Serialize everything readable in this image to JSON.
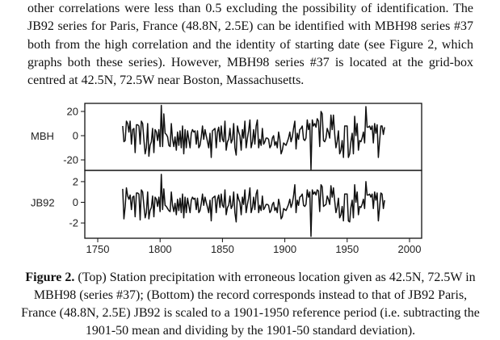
{
  "paragraph": "other correlations were less than 0.5 excluding the possibility of identification. The JB92 series for Paris, France (48.8N, 2.5E) can be identified with MBH98 series #37 both from the high correlation and the identity of starting date (see Figure 2, which graphs both these series). However, MBH98 series #37 is located at the grid-box centred at 42.5N, 72.5W near Boston, Massachusetts.",
  "caption": {
    "label": "Figure 2.",
    "text": " (Top) Station precipitation with erroneous location given as 42.5N, 72.5W in MBH98 (series #37); (Bottom) the record corresponds instead to that of JB92 Paris, France (48.8N, 2.5E) JB92 is scaled to a 1901-1950 reference period (i.e. subtracting the 1901-50 mean and dividing by the 1901-50 standard deviation)."
  },
  "chart_data": {
    "type": "line",
    "x_start": 1770,
    "x_end": 1980,
    "xlim": [
      1740,
      2010
    ],
    "xticks": [
      1750,
      1800,
      1850,
      1900,
      1950,
      2000
    ],
    "grid": false,
    "line_color": "#111111",
    "panels": [
      {
        "ylabel": "MBH",
        "ylim": [
          -29,
          28
        ],
        "yticks": [
          20,
          0,
          -20
        ],
        "values": [
          8,
          -5,
          -4,
          12,
          10,
          3,
          12,
          -7,
          5,
          6,
          -14,
          9,
          9,
          8,
          -7,
          12,
          10,
          -3,
          -15,
          -10,
          10,
          -17,
          -8,
          -5,
          6,
          -14,
          5,
          3,
          -4,
          5,
          -9,
          25,
          -9,
          18,
          2,
          1,
          -1,
          -8,
          -9,
          10,
          -3,
          -9,
          -1,
          -12,
          3,
          -8,
          4,
          -10,
          8,
          -15,
          5,
          -10,
          4,
          -3,
          -10,
          2,
          5,
          3,
          4,
          -7,
          4,
          -10,
          -8,
          -1,
          8,
          -3,
          5,
          0,
          -5,
          -10,
          2,
          -18,
          4,
          5,
          6,
          -10,
          3,
          7,
          -5,
          8,
          -3,
          -5,
          12,
          -12,
          -5,
          -3,
          6,
          -6,
          -3,
          10,
          -10,
          -16,
          8,
          3,
          0,
          -12,
          5,
          -2,
          12,
          -10,
          -2,
          4,
          13,
          -10,
          -5,
          5,
          -7,
          8,
          13,
          -10,
          -3,
          -8,
          6,
          -7,
          -5,
          -2,
          -2,
          -3,
          -10,
          -8,
          -2,
          0,
          -8,
          -5,
          -10,
          3,
          -3,
          -15,
          -12,
          -6,
          -7,
          -8,
          -5,
          -2,
          3,
          -5,
          -1,
          6,
          12,
          -11,
          2,
          -3,
          5,
          6,
          8,
          -3,
          -4,
          -2,
          13,
          5,
          10,
          -28,
          13,
          8,
          10,
          7,
          14,
          12,
          -9,
          20,
          18,
          -4,
          -5,
          -2,
          6,
          3,
          -2,
          17,
          5,
          17,
          1,
          -10,
          -5,
          4,
          -15,
          -12,
          -4,
          -18,
          8,
          8,
          8,
          -18,
          -15,
          -5,
          2,
          -15,
          16,
          0,
          10,
          -12,
          -4,
          -5,
          -2,
          3,
          -6,
          24,
          7,
          7,
          8,
          5,
          8,
          -6,
          10,
          2,
          9,
          -18,
          -5,
          8,
          8,
          1,
          7
        ]
      },
      {
        "ylabel": "JB92",
        "ylim": [
          -3.5,
          3.0
        ],
        "yticks": [
          2,
          0,
          -2
        ],
        "values": [
          1.3,
          -1.6,
          -0.4,
          1.4,
          0.6,
          0.3,
          0.7,
          -0.7,
          0.5,
          0.6,
          -1.4,
          0.9,
          0.9,
          0.8,
          -1.7,
          1.2,
          1.0,
          -0.3,
          -1.5,
          -1.0,
          1.0,
          -1.6,
          -0.8,
          -0.5,
          0.6,
          -1.4,
          0.5,
          0.3,
          -0.4,
          0.5,
          -0.9,
          2.7,
          -0.7,
          1.3,
          -0.3,
          -0.4,
          -0.6,
          -0.8,
          -0.9,
          1.0,
          -0.3,
          -0.9,
          -0.1,
          -1.2,
          0.3,
          -0.8,
          0.4,
          -1.0,
          0.8,
          -1.5,
          0.5,
          -1.0,
          0.4,
          -0.3,
          -1.0,
          0.2,
          0.5,
          0.3,
          0.4,
          -0.7,
          0.4,
          -1.0,
          -0.8,
          -0.1,
          0.8,
          -0.3,
          0.5,
          0.0,
          -0.5,
          -1.0,
          0.2,
          -1.8,
          0.4,
          0.5,
          0.6,
          -1.0,
          0.3,
          0.7,
          -0.5,
          0.8,
          -0.3,
          -0.5,
          1.2,
          -1.2,
          -0.5,
          -0.3,
          0.6,
          -0.6,
          -0.3,
          1.0,
          -1.0,
          -1.9,
          0.8,
          0.3,
          0.0,
          -1.2,
          0.5,
          -0.2,
          1.2,
          -1.0,
          -0.2,
          0.4,
          1.4,
          -1.0,
          -0.5,
          0.5,
          -0.7,
          0.8,
          1.2,
          -1.0,
          -0.3,
          -0.8,
          0.6,
          -0.7,
          -0.5,
          -0.2,
          -0.2,
          -0.3,
          -1.0,
          -0.8,
          -0.2,
          0.0,
          -0.8,
          -0.5,
          -1.0,
          0.3,
          -0.3,
          -1.6,
          -1.4,
          -0.6,
          -0.7,
          -0.8,
          -0.5,
          -0.2,
          0.3,
          -0.5,
          -0.1,
          0.6,
          1.7,
          -1.0,
          0.2,
          -0.3,
          0.5,
          0.6,
          0.8,
          -0.3,
          -0.4,
          -0.2,
          1.2,
          0.5,
          1.0,
          -3.3,
          1.2,
          0.8,
          1.0,
          0.7,
          1.2,
          1.1,
          -0.9,
          1.7,
          1.5,
          -0.4,
          -0.3,
          -0.2,
          0.6,
          0.3,
          -0.2,
          1.6,
          0.5,
          1.4,
          0.1,
          -1.0,
          -0.5,
          0.4,
          -1.5,
          -1.2,
          -0.4,
          -1.8,
          0.8,
          0.8,
          0.8,
          -1.8,
          -1.9,
          -0.5,
          0.2,
          -1.5,
          1.7,
          0.0,
          1.0,
          -1.2,
          -0.4,
          -0.5,
          -0.2,
          0.3,
          -0.6,
          2.0,
          0.7,
          0.7,
          0.8,
          0.5,
          0.8,
          -0.6,
          1.0,
          0.2,
          0.9,
          -1.8,
          -0.5,
          0.9,
          0.8,
          -0.6,
          0.2
        ]
      }
    ]
  }
}
